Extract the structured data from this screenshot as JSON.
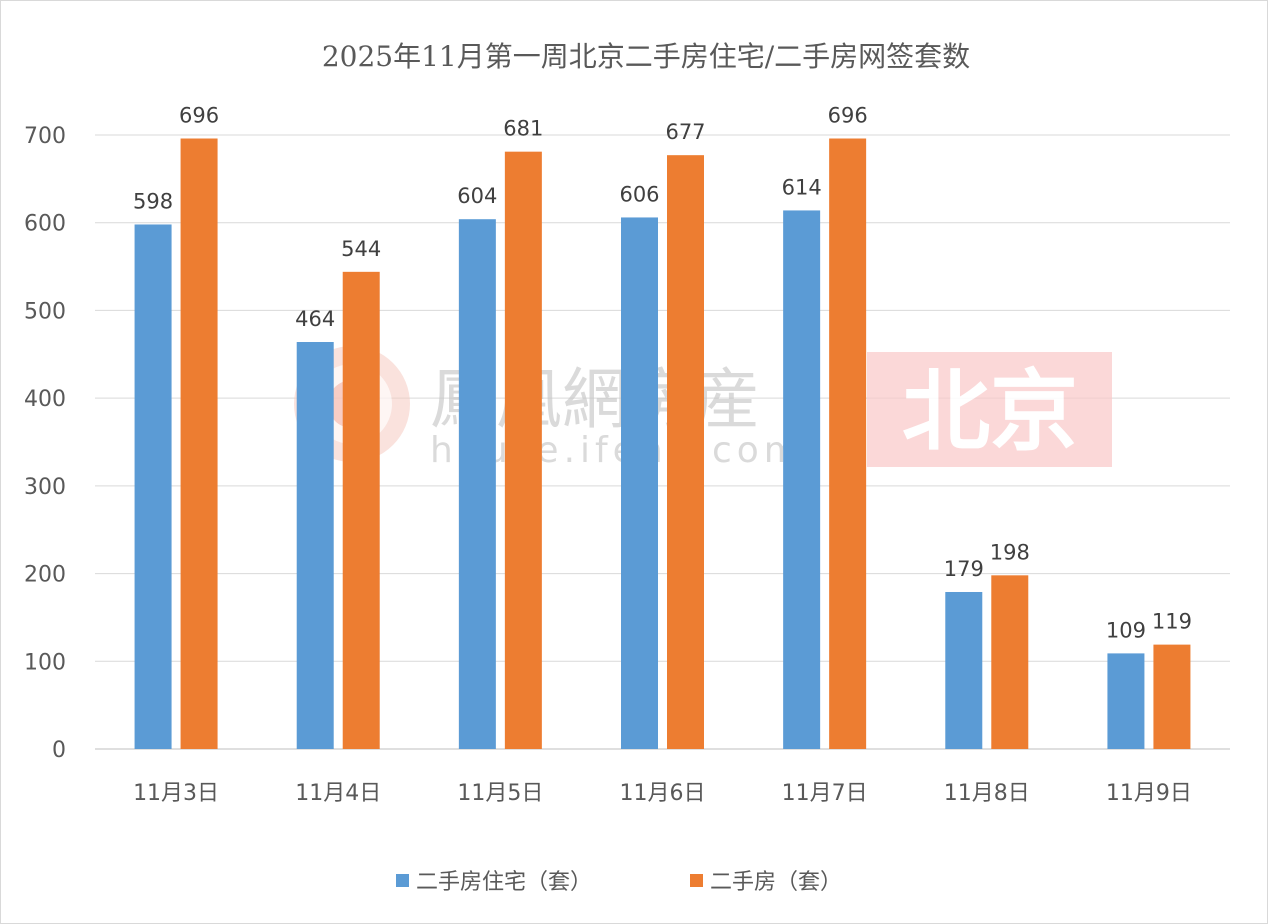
{
  "chart_data": {
    "type": "bar",
    "title": "2025年11月第一周北京二手房住宅/二手房网签套数",
    "categories": [
      "11月3日",
      "11月4日",
      "11月5日",
      "11月6日",
      "11月7日",
      "11月8日",
      "11月9日"
    ],
    "series": [
      {
        "name": "二手房住宅（套）",
        "color": "#5b9bd5",
        "values": [
          598,
          464,
          604,
          606,
          614,
          179,
          109
        ]
      },
      {
        "name": "二手房（套）",
        "color": "#ed7d31",
        "values": [
          696,
          544,
          681,
          677,
          696,
          198,
          119
        ]
      }
    ],
    "xlabel": "",
    "ylabel": "",
    "ylim": [
      0,
      700
    ],
    "yticks": [
      0,
      100,
      200,
      300,
      400,
      500,
      600,
      700
    ],
    "grid": true,
    "legend_position": "bottom",
    "data_labels": true
  },
  "watermark": {
    "logo_text": "鳳凰網房産",
    "logo_url_text": "house.ifeng.com",
    "city_badge": "北京"
  }
}
